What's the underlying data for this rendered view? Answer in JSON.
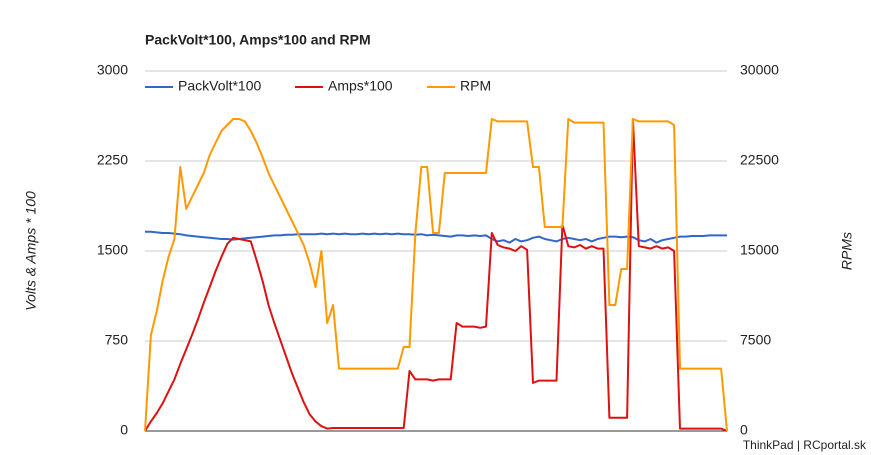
{
  "chart_data": {
    "type": "line",
    "title": "PackVolt*100, Amps*100 and RPM",
    "ylabel": "Volts & Amps * 100",
    "y2label": "RPMs",
    "footer": "ThinkPad | RCportal.sk",
    "ylim": [
      0,
      3000
    ],
    "yticks": [
      0,
      750,
      1500,
      2250,
      3000
    ],
    "y2lim": [
      0,
      30000
    ],
    "y2ticks": [
      0,
      7500,
      15000,
      22500,
      30000
    ],
    "grid": true,
    "legend": "top",
    "series": [
      {
        "name": "PackVolt*100",
        "color": "#3366cc",
        "values": [
          1660,
          1660,
          1655,
          1650,
          1650,
          1645,
          1640,
          1630,
          1625,
          1620,
          1615,
          1610,
          1605,
          1600,
          1600,
          1595,
          1600,
          1605,
          1610,
          1615,
          1620,
          1625,
          1630,
          1630,
          1635,
          1635,
          1640,
          1640,
          1640,
          1640,
          1645,
          1640,
          1645,
          1640,
          1645,
          1640,
          1640,
          1645,
          1640,
          1645,
          1640,
          1645,
          1640,
          1645,
          1640,
          1640,
          1635,
          1640,
          1630,
          1635,
          1630,
          1625,
          1620,
          1630,
          1630,
          1625,
          1630,
          1625,
          1630,
          1600,
          1580,
          1590,
          1570,
          1600,
          1580,
          1590,
          1610,
          1620,
          1600,
          1590,
          1580,
          1600,
          1610,
          1600,
          1590,
          1600,
          1580,
          1600,
          1610,
          1620,
          1620,
          1615,
          1620,
          1615,
          1590,
          1580,
          1600,
          1570,
          1590,
          1600,
          1610,
          1620,
          1620,
          1625,
          1625,
          1625,
          1630,
          1630,
          1630,
          1630
        ]
      },
      {
        "name": "Amps*100",
        "color": "#dd1111",
        "values": [
          0,
          80,
          150,
          230,
          330,
          430,
          560,
          680,
          800,
          930,
          1070,
          1200,
          1330,
          1450,
          1560,
          1610,
          1600,
          1590,
          1580,
          1420,
          1250,
          1050,
          900,
          760,
          620,
          480,
          360,
          240,
          140,
          80,
          40,
          20,
          25,
          25,
          25,
          25,
          25,
          25,
          25,
          25,
          25,
          25,
          25,
          25,
          25,
          500,
          430,
          430,
          430,
          420,
          430,
          430,
          430,
          900,
          870,
          870,
          870,
          860,
          870,
          1650,
          1550,
          1530,
          1520,
          1500,
          1540,
          1510,
          400,
          420,
          420,
          420,
          420,
          1720,
          1540,
          1530,
          1550,
          1520,
          1540,
          1520,
          1520,
          110,
          110,
          110,
          110,
          2600,
          1540,
          1530,
          1520,
          1540,
          1520,
          1530,
          1500,
          20,
          20,
          20,
          20,
          20,
          20,
          20,
          20,
          0
        ]
      },
      {
        "name": "RPM",
        "color": "#ff9900",
        "axis": "y2",
        "values": [
          0,
          8000,
          10000,
          12500,
          14500,
          16000,
          22000,
          18500,
          19500,
          20500,
          21500,
          23000,
          24000,
          25000,
          25500,
          26000,
          26000,
          25800,
          25000,
          24000,
          22800,
          21500,
          20500,
          19500,
          18500,
          17500,
          16500,
          15500,
          14000,
          12000,
          15000,
          9000,
          10500,
          5200,
          5200,
          5200,
          5200,
          5200,
          5200,
          5200,
          5200,
          5200,
          5200,
          5200,
          7000,
          7000,
          16500,
          22000,
          22000,
          16500,
          16500,
          21500,
          21500,
          21500,
          21500,
          21500,
          21500,
          21500,
          21500,
          26000,
          25800,
          25800,
          25800,
          25800,
          25800,
          25800,
          22000,
          22000,
          17000,
          17000,
          17000,
          17000,
          26000,
          25700,
          25700,
          25700,
          25700,
          25700,
          25700,
          10500,
          10500,
          13500,
          13500,
          26000,
          25800,
          25800,
          25800,
          25800,
          25800,
          25800,
          25500,
          5200,
          5200,
          5200,
          5200,
          5200,
          5200,
          5200,
          5200,
          0
        ]
      }
    ]
  }
}
